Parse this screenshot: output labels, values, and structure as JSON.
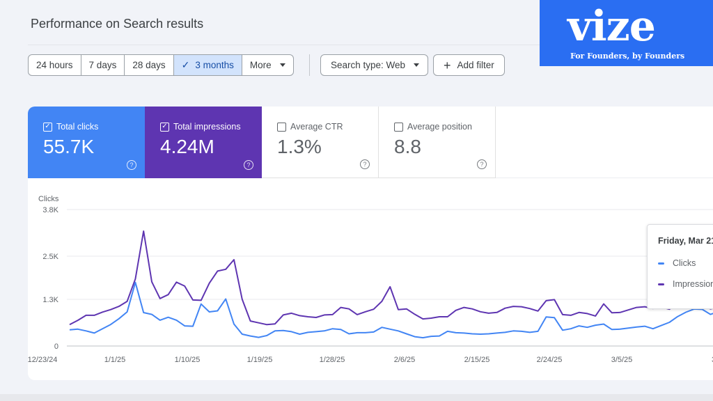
{
  "header": {
    "title": "Performance on Search results"
  },
  "date_range": {
    "options": [
      "24 hours",
      "7 days",
      "28 days",
      "3 months",
      "More"
    ],
    "active_index": 3
  },
  "filters": {
    "search_type": "Search type: Web",
    "add_filter": "Add filter"
  },
  "metrics": [
    {
      "label": "Total clicks",
      "value": "55.7K",
      "checked": true,
      "color": "#4285f4"
    },
    {
      "label": "Total impressions",
      "value": "4.24M",
      "checked": true,
      "color": "#5e35b1"
    },
    {
      "label": "Average CTR",
      "value": "1.3%",
      "checked": false
    },
    {
      "label": "Average position",
      "value": "8.8",
      "checked": false
    }
  ],
  "tooltip": {
    "date": "Friday, Mar 21",
    "rows": [
      "Clicks",
      "Impressions"
    ]
  },
  "brand": {
    "name": "vize",
    "tagline": "For Founders, by Founders",
    "color": "#2a6ef2"
  },
  "chart_data": {
    "type": "line",
    "ylabel": "Clicks",
    "yticks": [
      "0",
      "1.3K",
      "2.5K",
      "3.8K"
    ],
    "ylim": [
      0,
      3800
    ],
    "xticks": [
      "12/23/24",
      "1/1/25",
      "1/10/25",
      "1/19/25",
      "1/28/25",
      "2/6/25",
      "2/15/25",
      "2/24/25",
      "3/5/25",
      "3"
    ],
    "grid": true,
    "series": [
      {
        "name": "Clicks",
        "color": "#4285f4",
        "values": [
          450,
          470,
          420,
          360,
          480,
          600,
          760,
          950,
          1770,
          930,
          880,
          720,
          800,
          720,
          560,
          550,
          1170,
          950,
          980,
          1310,
          610,
          330,
          280,
          240,
          290,
          420,
          430,
          400,
          330,
          380,
          400,
          420,
          480,
          460,
          340,
          370,
          370,
          390,
          520,
          470,
          420,
          340,
          260,
          230,
          270,
          280,
          410,
          370,
          360,
          340,
          330,
          340,
          360,
          380,
          420,
          410,
          380,
          410,
          810,
          790,
          440,
          480,
          560,
          520,
          580,
          610,
          460,
          470,
          500,
          530,
          550,
          480,
          570,
          660,
          820,
          940,
          1030,
          1020,
          880,
          960,
          1120
        ]
      },
      {
        "name": "Impressions",
        "color": "#5e35b1",
        "values": [
          600,
          720,
          860,
          860,
          950,
          1020,
          1110,
          1250,
          1880,
          3220,
          1800,
          1330,
          1440,
          1790,
          1680,
          1290,
          1280,
          1760,
          2100,
          2150,
          2420,
          1310,
          700,
          650,
          600,
          620,
          870,
          920,
          850,
          820,
          800,
          870,
          880,
          1080,
          1040,
          880,
          960,
          1030,
          1250,
          1660,
          1020,
          1040,
          890,
          760,
          780,
          820,
          820,
          1000,
          1080,
          1040,
          960,
          920,
          940,
          1060,
          1110,
          1100,
          1050,
          980,
          1270,
          1300,
          880,
          860,
          940,
          910,
          840,
          1180,
          930,
          940,
          1010,
          1080,
          1100,
          1050,
          1090,
          1030,
          1200,
          1190,
          1170,
          1130,
          1040,
          1090,
          1170
        ]
      }
    ]
  }
}
